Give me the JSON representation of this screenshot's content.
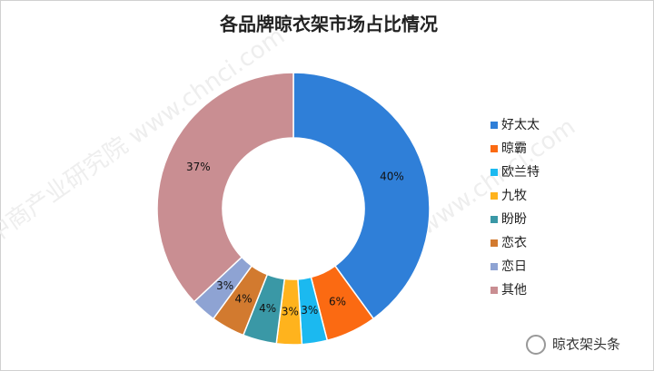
{
  "chart_data": {
    "type": "donut",
    "title": "各品牌晾衣架市场占比情况",
    "categories": [
      "好太太",
      "晾霸",
      "欧兰特",
      "九牧",
      "盼盼",
      "恋衣",
      "恋日",
      "其他"
    ],
    "values": [
      40,
      6,
      3,
      3,
      4,
      4,
      3,
      37
    ],
    "value_labels": [
      "40%",
      "6%",
      "3%",
      "3%",
      "4%",
      "4%",
      "3%",
      "37%"
    ],
    "colors": [
      "#2f7fd8",
      "#fb6a12",
      "#1bb9f0",
      "#ffb31d",
      "#3a98a6",
      "#d27a2f",
      "#8ea3d3",
      "#c98e92"
    ],
    "legend": "right"
  },
  "watermark": "中商产业研究院 www.chnci.com",
  "footer": "晾衣架头条"
}
